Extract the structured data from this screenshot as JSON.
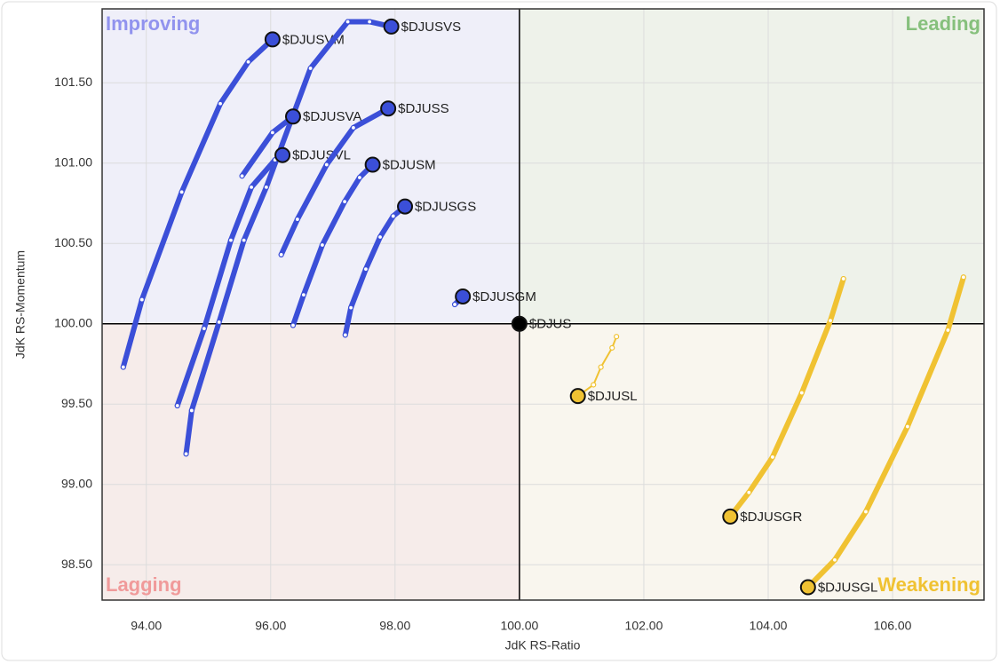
{
  "chart_data": {
    "type": "rrg",
    "xlabel": "JdK RS-Ratio",
    "ylabel": "JdK RS-Momentum",
    "xlim": [
      93.29,
      107.47
    ],
    "ylim": [
      98.28,
      101.96
    ],
    "xticks": [
      {
        "value": 94,
        "label": "94.00"
      },
      {
        "value": 96,
        "label": "96.00"
      },
      {
        "value": 98,
        "label": "98.00"
      },
      {
        "value": 100,
        "label": "100.00"
      },
      {
        "value": 102,
        "label": "102.00"
      },
      {
        "value": 104,
        "label": "104.00"
      },
      {
        "value": 106,
        "label": "106.00"
      }
    ],
    "yticks": [
      {
        "value": 98.5,
        "label": "98.50"
      },
      {
        "value": 99,
        "label": "99.00"
      },
      {
        "value": 99.5,
        "label": "99.50"
      },
      {
        "value": 100,
        "label": "100.00"
      },
      {
        "value": 100.5,
        "label": "100.50"
      },
      {
        "value": 101,
        "label": "101.00"
      },
      {
        "value": 101.5,
        "label": "101.50"
      }
    ],
    "grid": true,
    "center": {
      "x": 100,
      "y": 100
    },
    "quadrants": [
      {
        "label": "Improving",
        "color": "#9193ee",
        "fill": "#efeff9"
      },
      {
        "label": "Leading",
        "color": "#86c07c",
        "fill": "#eef2ea"
      },
      {
        "label": "Lagging",
        "color": "#f09a9a",
        "fill": "#f6ecea"
      },
      {
        "label": "Weakening",
        "color": "#f0c232",
        "fill": "#f9f6ee"
      }
    ],
    "series": [
      {
        "name": "$DJUSVM",
        "color": "#3b4fd8",
        "width": 6,
        "x": [
          93.63,
          93.93,
          94.57,
          95.19,
          95.64,
          96.03
        ],
        "values": [
          99.73,
          100.15,
          100.82,
          101.37,
          101.63,
          101.77
        ]
      },
      {
        "name": "$DJUSVS",
        "color": "#3b4fd8",
        "width": 6,
        "x": [
          94.64,
          94.73,
          95.17,
          95.57,
          95.93,
          96.64,
          97.24,
          97.59,
          97.94
        ],
        "values": [
          99.19,
          99.46,
          100.01,
          100.52,
          100.85,
          101.59,
          101.88,
          101.88,
          101.85
        ]
      },
      {
        "name": "$DJUSVA",
        "color": "#3b4fd8",
        "width": 6,
        "x": [
          95.54,
          96.03,
          96.36
        ],
        "values": [
          100.92,
          101.19,
          101.29
        ]
      },
      {
        "name": "$DJUSVL",
        "color": "#3b4fd8",
        "width": 6,
        "x": [
          94.5,
          94.93,
          95.36,
          95.69,
          96.07,
          96.19
        ],
        "values": [
          99.49,
          99.97,
          100.52,
          100.85,
          101.02,
          101.05
        ]
      },
      {
        "name": "$DJUSS",
        "color": "#3b4fd8",
        "width": 6,
        "x": [
          96.17,
          96.43,
          96.9,
          97.33,
          97.89
        ],
        "values": [
          100.43,
          100.65,
          100.99,
          101.22,
          101.34
        ]
      },
      {
        "name": "$DJUSM",
        "color": "#3b4fd8",
        "width": 6,
        "x": [
          96.36,
          96.53,
          96.83,
          97.19,
          97.43,
          97.64
        ],
        "values": [
          99.99,
          100.18,
          100.49,
          100.76,
          100.91,
          100.99
        ]
      },
      {
        "name": "$DJUSGS",
        "color": "#3b4fd8",
        "width": 6,
        "x": [
          97.2,
          97.29,
          97.53,
          97.76,
          97.97,
          98.16
        ],
        "values": [
          99.93,
          100.1,
          100.34,
          100.54,
          100.67,
          100.73
        ]
      },
      {
        "name": "$DJUSGM",
        "color": "#3b4fd8",
        "width": 6,
        "x": [
          98.96,
          99.09
        ],
        "values": [
          100.12,
          100.17
        ]
      },
      {
        "name": "$DJUS",
        "color": "#000000",
        "width": 6,
        "x": [
          100
        ],
        "values": [
          100
        ]
      },
      {
        "name": "$DJUSL",
        "color": "#f0c232",
        "width": 2,
        "x": [
          101.56,
          101.49,
          101.31,
          101.19,
          100.94
        ],
        "values": [
          99.92,
          99.85,
          99.73,
          99.62,
          99.55
        ]
      },
      {
        "name": "$DJUSGR",
        "color": "#f0c232",
        "width": 6,
        "x": [
          105.21,
          105.0,
          104.54,
          104.07,
          103.69,
          103.39
        ],
        "values": [
          100.28,
          100.02,
          99.57,
          99.17,
          98.95,
          98.8
        ]
      },
      {
        "name": "$DJUSGL",
        "color": "#f0c232",
        "width": 6,
        "x": [
          107.14,
          106.89,
          106.24,
          105.57,
          105.07,
          104.64
        ],
        "values": [
          100.29,
          99.96,
          99.36,
          98.83,
          98.53,
          98.36
        ]
      }
    ]
  }
}
